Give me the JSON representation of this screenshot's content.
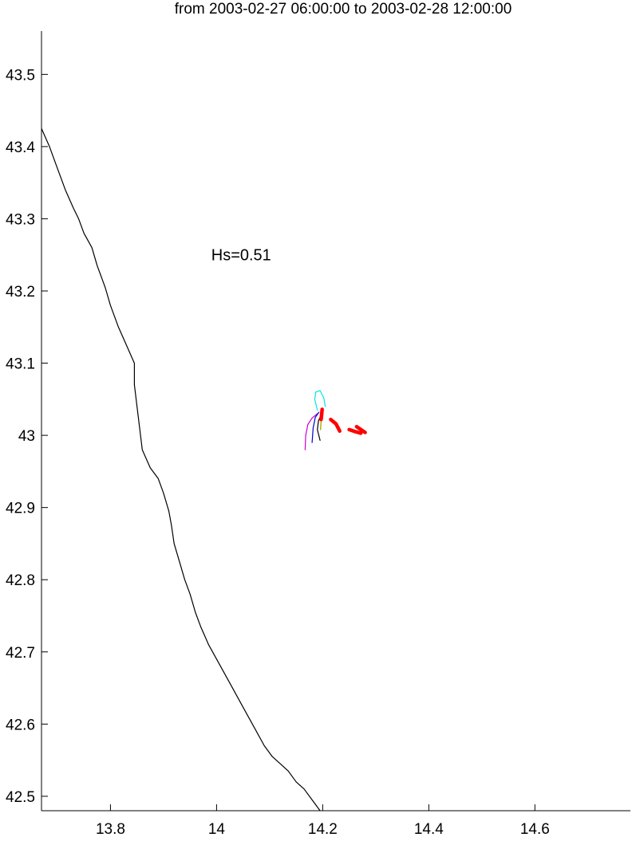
{
  "chart_data": {
    "type": "line",
    "title": "from 2003-02-27 06:00:00 to 2003-02-28 12:00:00",
    "xlim": [
      13.67,
      14.78
    ],
    "ylim": [
      42.48,
      43.56
    ],
    "x_ticks": [
      "13.8",
      "14",
      "14.2",
      "14.4",
      "14.6"
    ],
    "y_ticks": [
      "42.5",
      "42.6",
      "42.7",
      "42.8",
      "42.9",
      "43",
      "43.1",
      "43.2",
      "43.3",
      "43.4",
      "43.5"
    ],
    "grid": false,
    "annotation": {
      "text": "Hs=0.51",
      "x": 13.99,
      "y": 43.25
    },
    "coastline": {
      "color": "#000000",
      "points": [
        [
          13.67,
          43.425
        ],
        [
          13.685,
          43.4
        ],
        [
          13.7,
          43.37
        ],
        [
          13.715,
          43.34
        ],
        [
          13.73,
          43.315
        ],
        [
          13.74,
          43.3
        ],
        [
          13.75,
          43.28
        ],
        [
          13.765,
          43.26
        ],
        [
          13.775,
          43.235
        ],
        [
          13.79,
          43.205
        ],
        [
          13.8,
          43.18
        ],
        [
          13.815,
          43.15
        ],
        [
          13.83,
          43.125
        ],
        [
          13.845,
          43.1
        ],
        [
          13.845,
          43.07
        ],
        [
          13.85,
          43.04
        ],
        [
          13.855,
          43.01
        ],
        [
          13.86,
          42.98
        ],
        [
          13.875,
          42.955
        ],
        [
          13.89,
          42.94
        ],
        [
          13.9,
          42.92
        ],
        [
          13.91,
          42.895
        ],
        [
          13.915,
          42.875
        ],
        [
          13.92,
          42.85
        ],
        [
          13.93,
          42.825
        ],
        [
          13.94,
          42.8
        ],
        [
          13.95,
          42.78
        ],
        [
          13.96,
          42.755
        ],
        [
          13.97,
          42.735
        ],
        [
          13.985,
          42.71
        ],
        [
          14.0,
          42.69
        ],
        [
          14.015,
          42.67
        ],
        [
          14.03,
          42.65
        ],
        [
          14.045,
          42.63
        ],
        [
          14.06,
          42.61
        ],
        [
          14.075,
          42.59
        ],
        [
          14.09,
          42.57
        ],
        [
          14.105,
          42.555
        ],
        [
          14.12,
          42.545
        ],
        [
          14.135,
          42.535
        ],
        [
          14.15,
          42.52
        ],
        [
          14.165,
          42.51
        ],
        [
          14.18,
          42.495
        ],
        [
          14.195,
          42.48
        ]
      ]
    },
    "series": [
      {
        "color": "#00e5e5",
        "width": 1.2,
        "points": [
          [
            14.19,
            43.035
          ],
          [
            14.185,
            43.05
          ],
          [
            14.187,
            43.06
          ],
          [
            14.195,
            43.062
          ],
          [
            14.202,
            43.052
          ],
          [
            14.205,
            43.04
          ]
        ]
      },
      {
        "color": "#cc00cc",
        "width": 1.2,
        "points": [
          [
            14.167,
            42.98
          ],
          [
            14.168,
            43.0
          ],
          [
            14.172,
            43.015
          ],
          [
            14.18,
            43.024
          ],
          [
            14.19,
            43.03
          ]
        ]
      },
      {
        "color": "#0000cc",
        "width": 1.2,
        "points": [
          [
            14.18,
            42.99
          ],
          [
            14.182,
            43.01
          ],
          [
            14.186,
            43.025
          ],
          [
            14.193,
            43.032
          ]
        ]
      },
      {
        "color": "#000000",
        "width": 1.2,
        "points": [
          [
            14.195,
            42.993
          ],
          [
            14.19,
            43.008
          ],
          [
            14.192,
            43.02
          ],
          [
            14.198,
            43.03
          ]
        ]
      },
      {
        "color": "#aaaa00",
        "width": 1.4,
        "points": [
          [
            14.196,
            43.008
          ],
          [
            14.197,
            43.02
          ],
          [
            14.199,
            43.028
          ]
        ]
      },
      {
        "color": "#ff0000",
        "width": 4.5,
        "points": [
          [
            14.197,
            43.022
          ],
          [
            14.198,
            43.028
          ],
          [
            14.199,
            43.036
          ]
        ]
      },
      {
        "color": "#ff0000",
        "width": 4.5,
        "points": [
          [
            14.215,
            43.022
          ],
          [
            14.225,
            43.016
          ],
          [
            14.232,
            43.006
          ]
        ]
      },
      {
        "color": "#ff0000",
        "width": 4.5,
        "points": [
          [
            14.25,
            43.008
          ],
          [
            14.262,
            43.005
          ],
          [
            14.272,
            43.003
          ]
        ]
      },
      {
        "color": "#ff0000",
        "width": 4.5,
        "points": [
          [
            14.264,
            43.012
          ],
          [
            14.272,
            43.008
          ],
          [
            14.28,
            43.004
          ]
        ]
      }
    ]
  }
}
